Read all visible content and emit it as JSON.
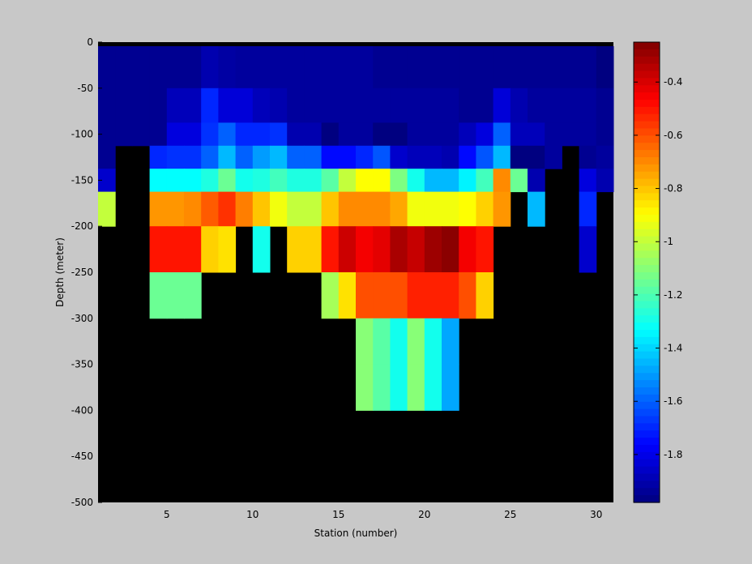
{
  "chart_data": {
    "type": "heatmap",
    "title": "",
    "xlabel": "Station (number)",
    "ylabel": "Depth (meter)",
    "xlim": [
      1,
      31
    ],
    "ylim": [
      -500,
      0
    ],
    "x_ticks": [
      "5",
      "10",
      "15",
      "20",
      "25",
      "30"
    ],
    "y_ticks": [
      "0",
      "-50",
      "-100",
      "-150",
      "-200",
      "-250",
      "-300",
      "-350",
      "-400",
      "-450",
      "-500"
    ],
    "colorbar": {
      "min": -1.98,
      "max": -0.25,
      "colormap": "jet",
      "ticks": [
        "-0.4",
        "-0.6",
        "-0.8",
        "-1",
        "-1.2",
        "-1.4",
        "-1.6",
        "-1.8"
      ]
    },
    "no_data_color": "#000000",
    "grid": false,
    "stations": [
      1,
      2,
      3,
      4,
      5,
      6,
      7,
      8,
      9,
      10,
      11,
      12,
      13,
      14,
      15,
      16,
      17,
      18,
      19,
      20,
      21,
      22,
      23,
      24,
      25,
      26,
      27,
      28,
      29,
      30
    ],
    "depths": [
      -25,
      -75,
      -100,
      -125,
      -150,
      -175,
      -225,
      -275,
      -325,
      -375
    ],
    "values": [
      [
        -1.95,
        -1.95,
        -1.95,
        -1.95,
        -1.95,
        -1.95,
        -1.9,
        -1.92,
        -1.93,
        -1.93,
        -1.93,
        -1.93,
        -1.93,
        -1.93,
        -1.93,
        -1.93,
        -1.95,
        -1.95,
        -1.95,
        -1.95,
        -1.95,
        -1.95,
        -1.95,
        -1.95,
        -1.95,
        -1.95,
        -1.95,
        -1.95,
        -1.95,
        -1.98
      ],
      [
        -1.95,
        -1.95,
        -1.95,
        -1.95,
        -1.88,
        -1.88,
        -1.7,
        -1.83,
        -1.83,
        -1.88,
        -1.9,
        -1.93,
        -1.93,
        -1.93,
        -1.93,
        -1.93,
        -1.93,
        -1.93,
        -1.93,
        -1.93,
        -1.93,
        -1.95,
        -1.95,
        -1.83,
        -1.9,
        -1.93,
        -1.93,
        -1.93,
        -1.93,
        -1.95
      ],
      [
        -1.95,
        -1.95,
        -1.95,
        -1.95,
        -1.82,
        -1.82,
        -1.68,
        -1.6,
        -1.7,
        -1.7,
        -1.68,
        -1.9,
        -1.9,
        -1.98,
        -1.93,
        -1.93,
        -1.98,
        -1.98,
        -1.93,
        -1.93,
        -1.93,
        -1.88,
        -1.82,
        -1.6,
        -1.88,
        -1.88,
        -1.93,
        -1.93,
        -1.93,
        -1.95
      ],
      [
        -1.95,
        null,
        null,
        -1.7,
        -1.68,
        -1.68,
        -1.6,
        -1.45,
        -1.6,
        -1.5,
        -1.45,
        -1.6,
        -1.6,
        -1.75,
        -1.75,
        -1.7,
        -1.62,
        -1.85,
        -1.88,
        -1.88,
        -1.9,
        -1.75,
        -1.62,
        -1.45,
        -1.98,
        -1.98,
        -1.93,
        null,
        -1.95,
        -1.93
      ],
      [
        -1.85,
        null,
        null,
        -1.33,
        -1.33,
        -1.33,
        -1.28,
        -1.15,
        -1.3,
        -1.28,
        -1.22,
        -1.28,
        -1.28,
        -1.18,
        -1.0,
        -0.9,
        -0.9,
        -1.12,
        -1.3,
        -1.45,
        -1.45,
        -1.35,
        -1.22,
        -0.7,
        -1.15,
        -1.9,
        null,
        null,
        -1.82,
        -1.9
      ],
      [
        -1.0,
        null,
        null,
        -0.72,
        -0.72,
        -0.7,
        -0.62,
        -0.55,
        -0.68,
        -0.8,
        -0.92,
        -1.0,
        -1.0,
        -0.8,
        -0.7,
        -0.7,
        -0.7,
        -0.75,
        -0.92,
        -0.92,
        -0.92,
        -0.9,
        -0.82,
        -0.72,
        null,
        -1.45,
        null,
        null,
        -1.7,
        null
      ],
      [
        null,
        null,
        null,
        -0.5,
        -0.5,
        -0.5,
        -0.82,
        -0.85,
        null,
        -1.3,
        null,
        -0.82,
        -0.82,
        -0.5,
        -0.38,
        -0.45,
        -0.42,
        -0.32,
        -0.37,
        -0.3,
        -0.27,
        -0.45,
        -0.5,
        null,
        null,
        null,
        null,
        null,
        -1.85,
        null
      ],
      [
        null,
        null,
        null,
        -1.15,
        -1.15,
        -1.15,
        null,
        null,
        null,
        null,
        null,
        null,
        null,
        -1.05,
        -0.85,
        -0.6,
        -0.6,
        -0.6,
        -0.52,
        -0.52,
        -0.52,
        -0.6,
        -0.82,
        null,
        null,
        null,
        null,
        null,
        null,
        null
      ],
      [
        null,
        null,
        null,
        null,
        null,
        null,
        null,
        null,
        null,
        null,
        null,
        null,
        null,
        null,
        null,
        -1.1,
        -1.18,
        -1.3,
        -1.1,
        -1.3,
        -1.48,
        null,
        null,
        null,
        null,
        null,
        null,
        null,
        null,
        null
      ],
      [
        null,
        null,
        null,
        null,
        null,
        null,
        null,
        null,
        null,
        null,
        null,
        null,
        null,
        null,
        null,
        -1.1,
        -1.18,
        -1.3,
        -1.1,
        -1.3,
        -1.48,
        null,
        null,
        null,
        null,
        null,
        null,
        null,
        null,
        null
      ]
    ]
  }
}
